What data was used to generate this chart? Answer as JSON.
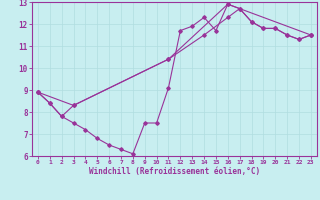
{
  "xlabel": "Windchill (Refroidissement éolien,°C)",
  "bg_color": "#c8eef0",
  "line_color": "#993399",
  "grid_color": "#b0dde0",
  "xlim": [
    -0.5,
    23.5
  ],
  "ylim": [
    6,
    13
  ],
  "xticks": [
    0,
    1,
    2,
    3,
    4,
    5,
    6,
    7,
    8,
    9,
    10,
    11,
    12,
    13,
    14,
    15,
    16,
    17,
    18,
    19,
    20,
    21,
    22,
    23
  ],
  "yticks": [
    6,
    7,
    8,
    9,
    10,
    11,
    12,
    13
  ],
  "series": [
    {
      "x": [
        0,
        1,
        2,
        3,
        4,
        5,
        6,
        7,
        8,
        9,
        10,
        11,
        12,
        13,
        14,
        15,
        16,
        17,
        18,
        19,
        20,
        21,
        22,
        23
      ],
      "y": [
        8.9,
        8.4,
        7.8,
        7.5,
        7.2,
        6.8,
        6.5,
        6.3,
        6.1,
        7.5,
        7.5,
        9.1,
        11.7,
        11.9,
        12.3,
        11.7,
        12.9,
        12.7,
        12.1,
        11.8,
        11.8,
        11.5,
        11.3,
        11.5
      ]
    },
    {
      "x": [
        0,
        1,
        2,
        3,
        11,
        14,
        16,
        17,
        18,
        19,
        20,
        21,
        22,
        23
      ],
      "y": [
        8.9,
        8.4,
        7.8,
        8.3,
        10.4,
        11.5,
        12.3,
        12.7,
        12.1,
        11.8,
        11.8,
        11.5,
        11.3,
        11.5
      ]
    },
    {
      "x": [
        0,
        3,
        11,
        16,
        23
      ],
      "y": [
        8.9,
        8.3,
        10.4,
        12.9,
        11.5
      ]
    }
  ]
}
